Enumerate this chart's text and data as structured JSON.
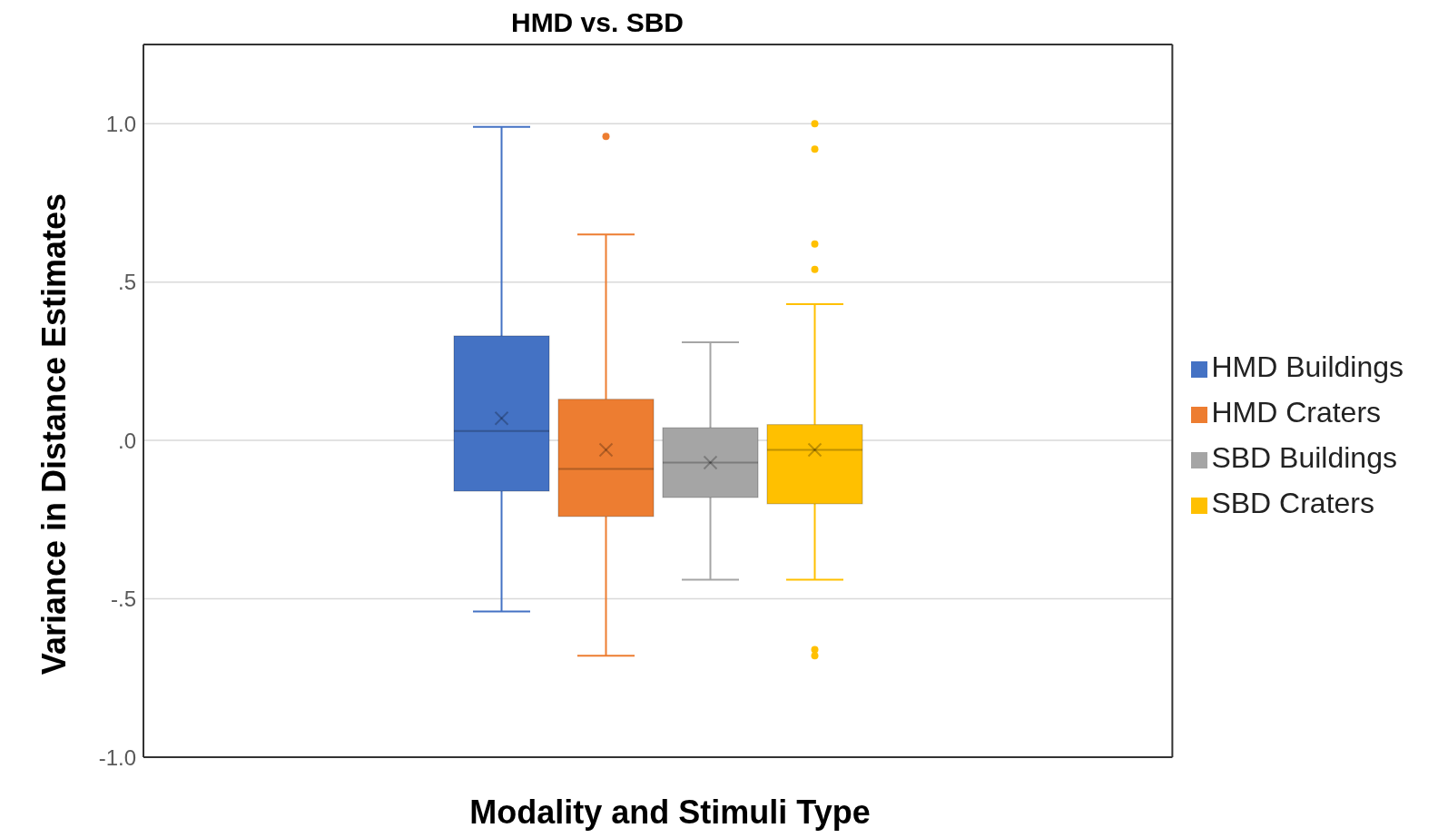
{
  "chart_data": {
    "type": "box",
    "title": "HMD vs. SBD",
    "xlabel": "Modality and Stimuli Type",
    "ylabel": "Variance in Distance Estimates",
    "categories": [
      null
    ],
    "series": [
      {
        "name": "HMD Buildings",
        "color": "#4472c4",
        "boxes": [
          {
            "low": -0.54,
            "q1": -0.16,
            "median": 0.03,
            "q3": 0.33,
            "high": 0.99,
            "mean": 0.07
          }
        ]
      },
      {
        "name": "HMD Craters",
        "color": "#ed7d31",
        "boxes": [
          {
            "low": -0.68,
            "q1": -0.24,
            "median": -0.09,
            "q3": 0.13,
            "high": 0.65,
            "mean": -0.03,
            "outliers": [
              0.96
            ]
          }
        ]
      },
      {
        "name": "SBD Buildings",
        "color": "#a5a5a5",
        "boxes": [
          {
            "low": -0.44,
            "q1": -0.18,
            "median": -0.07,
            "q3": 0.04,
            "high": 0.31,
            "mean": -0.07
          }
        ]
      },
      {
        "name": "SBD Craters",
        "color": "#ffc000",
        "boxes": [
          {
            "low": -0.44,
            "q1": -0.2,
            "median": -0.03,
            "q3": 0.05,
            "high": 0.43,
            "mean": -0.03,
            "outliers": [
              1.0,
              0.92,
              0.62,
              0.54,
              -0.66,
              -0.68
            ]
          }
        ]
      }
    ],
    "ylim": [
      -1.0,
      1.25
    ],
    "yticks": [
      {
        "value": -1.0,
        "label": "-1.0"
      },
      {
        "value": -0.5,
        "label": "-.5"
      },
      {
        "value": 0,
        "label": ".0"
      },
      {
        "value": 0.5,
        "label": ".5"
      },
      {
        "value": 1.0,
        "label": "1.0"
      }
    ],
    "grid": "y",
    "legend": "right",
    "tick_labels": "y"
  }
}
